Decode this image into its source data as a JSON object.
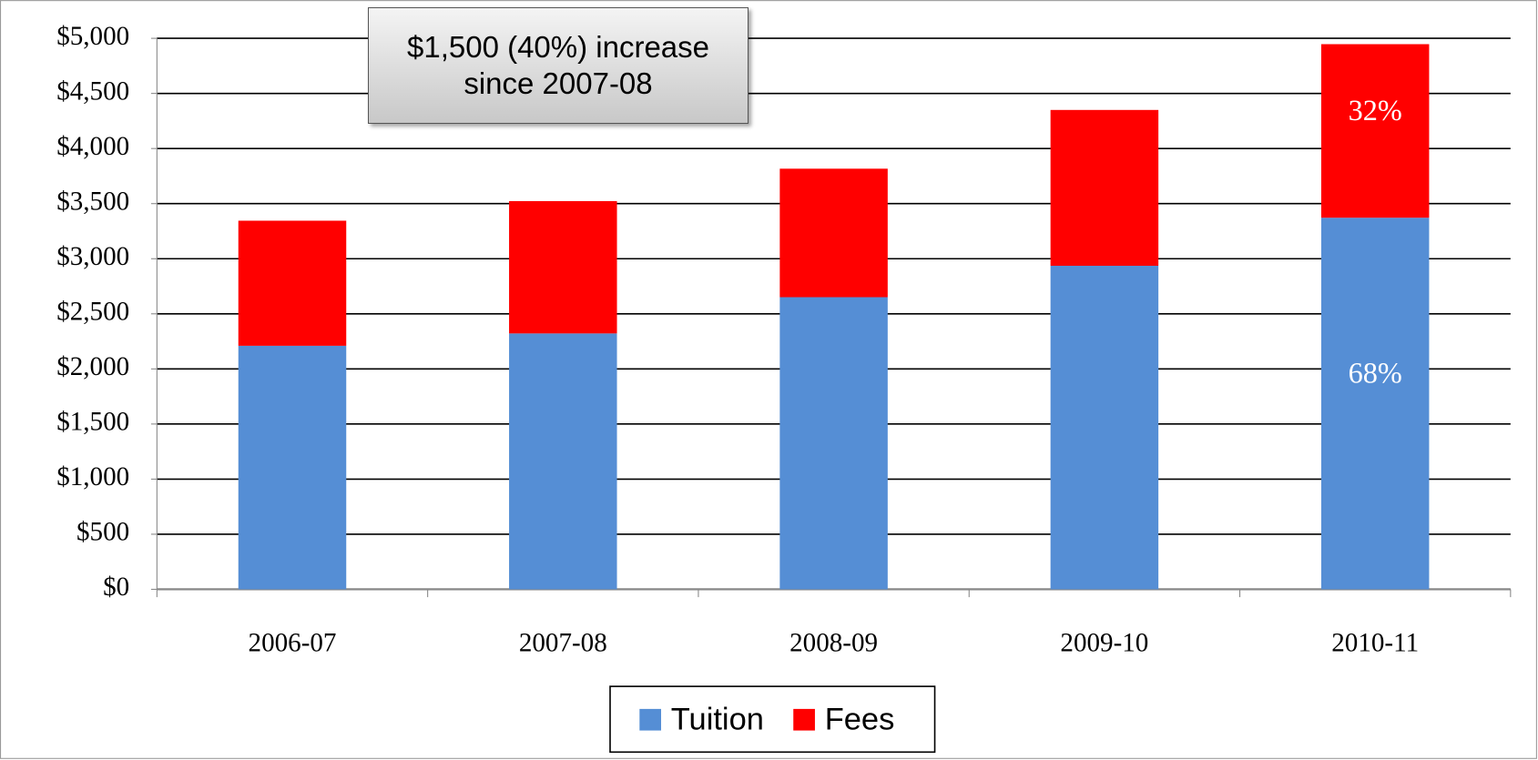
{
  "chart_data": {
    "type": "stacked_bar",
    "annotation": "$1,500 (40%) increase since 2007-08",
    "categories": [
      "2006-07",
      "2007-08",
      "2008-09",
      "2009-10",
      "2010-11"
    ],
    "series": [
      {
        "name": "Tuition",
        "color": "#558ed5",
        "values": [
          2210,
          2322,
          2651,
          2936,
          3372
        ],
        "share_labels": [
          null,
          null,
          null,
          null,
          "68%"
        ]
      },
      {
        "name": "Fees",
        "color": "#ff0000",
        "values": [
          1135,
          1201,
          1166,
          1414,
          1575
        ],
        "share_labels": [
          null,
          null,
          null,
          null,
          "32%"
        ]
      }
    ],
    "ylim": [
      0,
      5000
    ],
    "yticks": [
      {
        "value": 0,
        "label": "$0"
      },
      {
        "value": 500,
        "label": "$500"
      },
      {
        "value": 1000,
        "label": "$1,000"
      },
      {
        "value": 1500,
        "label": "$1,500"
      },
      {
        "value": 2000,
        "label": "$2,000"
      },
      {
        "value": 2500,
        "label": "$2,500"
      },
      {
        "value": 3000,
        "label": "$3,000"
      },
      {
        "value": 3500,
        "label": "$3,500"
      },
      {
        "value": 4000,
        "label": "$4,000"
      },
      {
        "value": 4500,
        "label": "$4,500"
      },
      {
        "value": 5000,
        "label": "$5,000"
      }
    ],
    "grid": true,
    "legend": "bottom"
  }
}
